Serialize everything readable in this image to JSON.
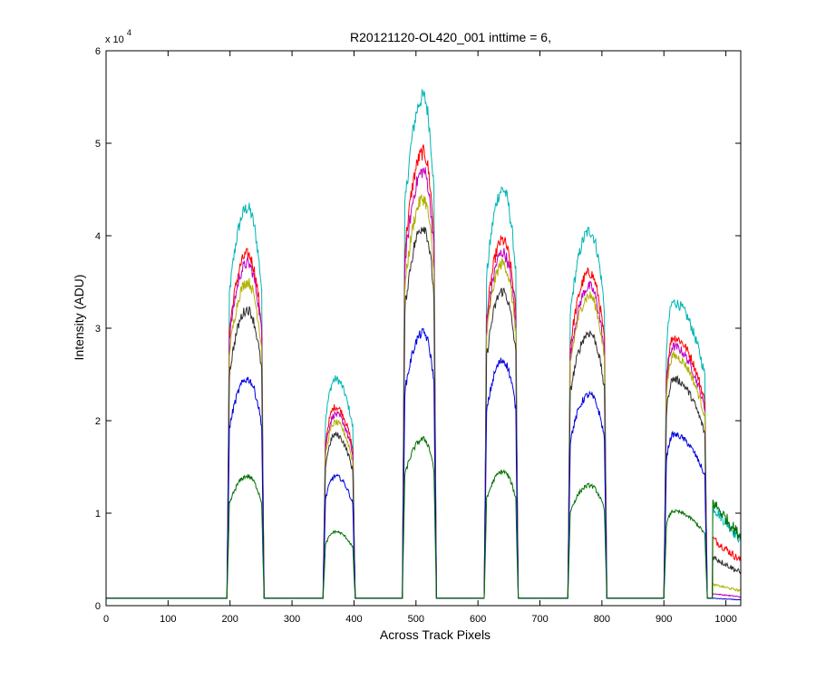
{
  "chart_data": {
    "type": "line",
    "title": "R20121120-OL420_001 inttime = 6,",
    "xlabel": "Across Track Pixels",
    "ylabel": "Intensity (ADU)",
    "y_multiplier_base": "x 10",
    "y_multiplier_exponent": "4",
    "xlim": [
      0,
      1024
    ],
    "ylim": [
      0,
      60000
    ],
    "x_ticks": [
      0,
      100,
      200,
      300,
      400,
      500,
      600,
      700,
      800,
      900,
      1000
    ],
    "x_tick_labels": [
      "0",
      "100",
      "200",
      "300",
      "400",
      "500",
      "600",
      "700",
      "800",
      "900",
      "1000"
    ],
    "y_ticks": [
      0,
      10000,
      20000,
      30000,
      40000,
      50000,
      60000
    ],
    "y_tick_labels": [
      "0",
      "1",
      "2",
      "3",
      "4",
      "5",
      "6"
    ],
    "grid": false,
    "background_level": 800,
    "bands": [
      {
        "start": 195,
        "end": 255,
        "peak_x": 228
      },
      {
        "start": 350,
        "end": 402,
        "peak_x": 370
      },
      {
        "start": 478,
        "end": 533,
        "peak_x": 512
      },
      {
        "start": 610,
        "end": 665,
        "peak_x": 640
      },
      {
        "start": 745,
        "end": 808,
        "peak_x": 780
      },
      {
        "start": 900,
        "end": 970,
        "peak_x": 915
      }
    ],
    "series": [
      {
        "color": "#00b5b5",
        "peaks": [
          43000,
          24500,
          55000,
          45000,
          40500,
          32800
        ],
        "edge_level": 10500
      },
      {
        "color": "#ff0000",
        "peaks": [
          38000,
          21500,
          49000,
          39500,
          36000,
          29000
        ],
        "edge_level": 7000
      },
      {
        "color": "#c000c0",
        "peaks": [
          37000,
          20700,
          47000,
          38200,
          34500,
          28000
        ],
        "edge_level": 1000
      },
      {
        "color": "#b0b000",
        "peaks": [
          35000,
          19800,
          44000,
          37000,
          33500,
          27000
        ],
        "edge_level": 2000
      },
      {
        "color": "#303030",
        "peaks": [
          32000,
          18500,
          41000,
          34000,
          29500,
          24500
        ],
        "edge_level": 5000
      },
      {
        "color": "#0000e0",
        "peaks": [
          24500,
          14000,
          29500,
          26500,
          22800,
          18500
        ],
        "edge_level": 500
      },
      {
        "color": "#007000",
        "peaks": [
          14000,
          8000,
          18000,
          14500,
          13000,
          10200
        ],
        "edge_level": 11000
      }
    ]
  }
}
